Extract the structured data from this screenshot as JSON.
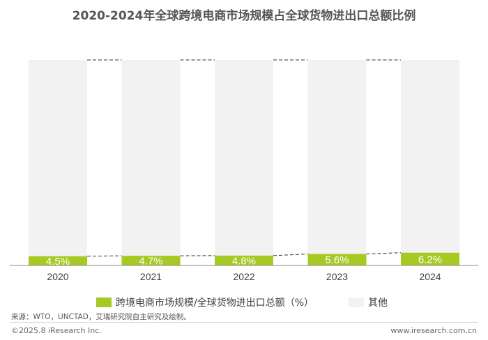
{
  "title": "2020-2024年全球跨境电商市场规模占全球货物进出口总额比例",
  "legend": {
    "series1_label": "跨境电商市场规模/全球货物进出口总额（%）",
    "series2_label": "其他"
  },
  "source": "来源：WTO，UNCTAD，艾瑞研究院自主研究及绘制。",
  "footer": {
    "copyright": "©2025.8 iResearch Inc.",
    "website": "www.iresearch.com.cn"
  },
  "colors": {
    "accent": "#a6c924",
    "other": "#f2f2f2",
    "title": "#555555"
  },
  "chart_data": {
    "type": "bar",
    "stacked": true,
    "percent_stacked": true,
    "categories": [
      "2020",
      "2021",
      "2022",
      "2023",
      "2024"
    ],
    "series": [
      {
        "name": "跨境电商市场规模/全球货物进出口总额（%）",
        "values": [
          4.5,
          4.7,
          4.8,
          5.6,
          6.2
        ],
        "labels": [
          "4.5%",
          "4.7%",
          "4.8%",
          "5.6%",
          "6.2%"
        ]
      },
      {
        "name": "其他",
        "values": [
          95.5,
          95.3,
          95.2,
          94.4,
          93.8
        ]
      }
    ],
    "ylim": [
      0,
      100
    ],
    "grid": false,
    "legend_position": "bottom"
  }
}
